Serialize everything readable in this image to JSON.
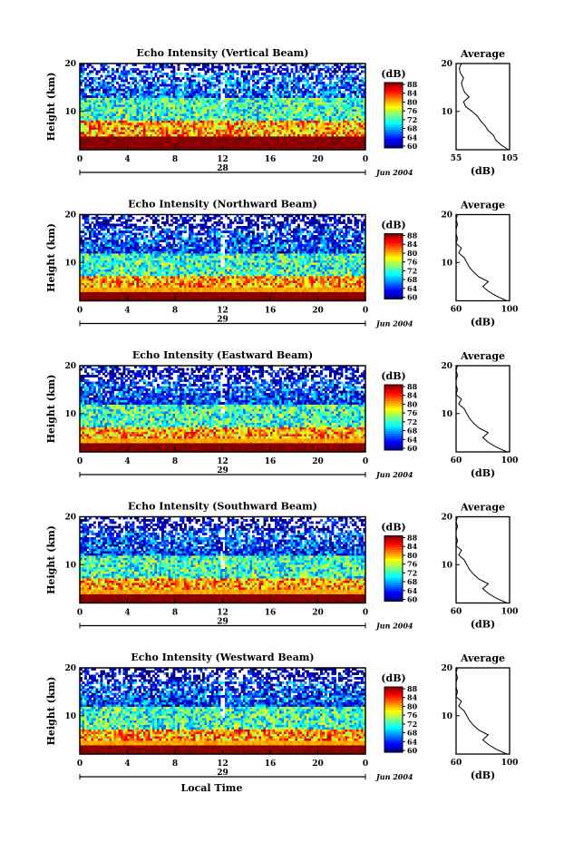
{
  "chart_data": [
    {
      "type": "heatmap",
      "title": "Echo Intensity (Vertical Beam)",
      "ylabel": "Height (km)",
      "ylim": [
        2,
        20
      ],
      "xlim": [
        0,
        24
      ],
      "x_ticks": [
        "0",
        "4",
        "8",
        "12",
        "16",
        "20",
        "0"
      ],
      "y_ticks": [
        "20",
        "10"
      ],
      "day_label": "28",
      "date_label": "Jun 2004",
      "colorbar": {
        "unit": "(dB)",
        "ticks": [
          "88",
          "84",
          "80",
          "76",
          "72",
          "68",
          "64",
          "60"
        ],
        "range": [
          60,
          88
        ]
      },
      "layers": [
        {
          "height_km": [
            2,
            5
          ],
          "intensity_db": 88
        },
        {
          "height_km": [
            5,
            8
          ],
          "intensity_db": 80
        },
        {
          "height_km": [
            8,
            13
          ],
          "intensity_db": 72
        },
        {
          "height_km": [
            13,
            18
          ],
          "intensity_db": 66
        },
        {
          "height_km": [
            18,
            20
          ],
          "intensity_db": 62
        }
      ],
      "average_profile": {
        "title": "Average",
        "xlabel": "(dB)",
        "xlim": [
          55,
          105
        ],
        "x_ticks": [
          "55",
          "105"
        ],
        "y_ticks": [
          "20",
          "10"
        ],
        "height": [
          2,
          3,
          4,
          5,
          6,
          7,
          8,
          9,
          10,
          11,
          12,
          13,
          14,
          15,
          16,
          17,
          18,
          19,
          20
        ],
        "db": [
          104,
          97,
          92,
          90,
          85,
          82,
          78,
          75,
          70,
          64,
          62,
          67,
          63,
          61,
          60,
          62,
          59,
          58,
          60
        ]
      }
    },
    {
      "type": "heatmap",
      "title": "Echo Intensity (Northward Beam)",
      "ylabel": "Height (km)",
      "ylim": [
        2,
        20
      ],
      "xlim": [
        0,
        24
      ],
      "x_ticks": [
        "0",
        "4",
        "8",
        "12",
        "16",
        "20",
        "0"
      ],
      "y_ticks": [
        "20",
        "10"
      ],
      "day_label": "29",
      "date_label": "Jun 2004",
      "colorbar": {
        "unit": "(dB)",
        "ticks": [
          "88",
          "84",
          "80",
          "76",
          "72",
          "68",
          "64",
          "60"
        ],
        "range": [
          60,
          88
        ]
      },
      "layers": [
        {
          "height_km": [
            2,
            4
          ],
          "intensity_db": 88
        },
        {
          "height_km": [
            4,
            7
          ],
          "intensity_db": 80
        },
        {
          "height_km": [
            7,
            12
          ],
          "intensity_db": 72
        },
        {
          "height_km": [
            12,
            17
          ],
          "intensity_db": 65
        },
        {
          "height_km": [
            17,
            20
          ],
          "intensity_db": 61
        }
      ],
      "average_profile": {
        "title": "Average",
        "xlabel": "(dB)",
        "xlim": [
          60,
          100
        ],
        "x_ticks": [
          "60",
          "100"
        ],
        "y_ticks": [
          "20",
          "10"
        ],
        "height": [
          2,
          3,
          4,
          5,
          6,
          7,
          8,
          9,
          10,
          11,
          12,
          13,
          14,
          15,
          16,
          17,
          18,
          19,
          20
        ],
        "db": [
          98,
          90,
          84,
          80,
          84,
          77,
          73,
          70,
          68,
          66,
          62,
          64,
          60,
          61,
          60,
          60,
          61,
          60,
          61
        ]
      }
    },
    {
      "type": "heatmap",
      "title": "Echo Intensity (Eastward Beam)",
      "ylabel": "Height (km)",
      "ylim": [
        2,
        20
      ],
      "xlim": [
        0,
        24
      ],
      "x_ticks": [
        "0",
        "4",
        "8",
        "12",
        "16",
        "20",
        "0"
      ],
      "y_ticks": [
        "20",
        "10"
      ],
      "day_label": "29",
      "date_label": "Jun 2004",
      "colorbar": {
        "unit": "(dB)",
        "ticks": [
          "88",
          "84",
          "80",
          "76",
          "72",
          "68",
          "64",
          "60"
        ],
        "range": [
          60,
          88
        ]
      },
      "layers": [
        {
          "height_km": [
            2,
            4
          ],
          "intensity_db": 88
        },
        {
          "height_km": [
            4,
            7
          ],
          "intensity_db": 80
        },
        {
          "height_km": [
            7,
            12
          ],
          "intensity_db": 72
        },
        {
          "height_km": [
            12,
            17
          ],
          "intensity_db": 65
        },
        {
          "height_km": [
            17,
            20
          ],
          "intensity_db": 61
        }
      ],
      "average_profile": {
        "title": "Average",
        "xlabel": "(dB)",
        "xlim": [
          60,
          100
        ],
        "x_ticks": [
          "60",
          "100"
        ],
        "y_ticks": [
          "20",
          "10"
        ],
        "height": [
          2,
          3,
          4,
          5,
          6,
          7,
          8,
          9,
          10,
          11,
          12,
          13,
          14,
          15,
          16,
          17,
          18,
          19,
          20
        ],
        "db": [
          98,
          90,
          84,
          80,
          84,
          77,
          73,
          70,
          68,
          66,
          62,
          64,
          60,
          61,
          60,
          60,
          61,
          60,
          61
        ]
      }
    },
    {
      "type": "heatmap",
      "title": "Echo Intensity (Southward Beam)",
      "ylabel": "Height (km)",
      "ylim": [
        2,
        20
      ],
      "xlim": [
        0,
        24
      ],
      "x_ticks": [
        "0",
        "4",
        "8",
        "12",
        "16",
        "20",
        "0"
      ],
      "y_ticks": [
        "20",
        "10"
      ],
      "day_label": "29",
      "date_label": "Jun 2004",
      "colorbar": {
        "unit": "(dB)",
        "ticks": [
          "88",
          "84",
          "80",
          "76",
          "72",
          "68",
          "64",
          "60"
        ],
        "range": [
          60,
          88
        ]
      },
      "layers": [
        {
          "height_km": [
            2,
            4
          ],
          "intensity_db": 88
        },
        {
          "height_km": [
            4,
            7
          ],
          "intensity_db": 80
        },
        {
          "height_km": [
            7,
            12
          ],
          "intensity_db": 72
        },
        {
          "height_km": [
            12,
            17
          ],
          "intensity_db": 65
        },
        {
          "height_km": [
            17,
            20
          ],
          "intensity_db": 61
        }
      ],
      "average_profile": {
        "title": "Average",
        "xlabel": "(dB)",
        "xlim": [
          60,
          100
        ],
        "x_ticks": [
          "60",
          "100"
        ],
        "y_ticks": [
          "20",
          "10"
        ],
        "height": [
          2,
          3,
          4,
          5,
          6,
          7,
          8,
          9,
          10,
          11,
          12,
          13,
          14,
          15,
          16,
          17,
          18,
          19,
          20
        ],
        "db": [
          98,
          90,
          84,
          80,
          84,
          77,
          73,
          70,
          68,
          66,
          62,
          64,
          60,
          61,
          60,
          60,
          61,
          60,
          61
        ]
      }
    },
    {
      "type": "heatmap",
      "title": "Echo Intensity (Westward Beam)",
      "ylabel": "Height (km)",
      "ylim": [
        2,
        20
      ],
      "xlim": [
        0,
        24
      ],
      "x_ticks": [
        "0",
        "4",
        "8",
        "12",
        "16",
        "20",
        "0"
      ],
      "y_ticks": [
        "20",
        "10"
      ],
      "day_label": "29",
      "date_label": "Jun 2004",
      "xlabel": "Local Time",
      "colorbar": {
        "unit": "(dB)",
        "ticks": [
          "88",
          "84",
          "80",
          "76",
          "72",
          "68",
          "64",
          "60"
        ],
        "range": [
          60,
          88
        ]
      },
      "layers": [
        {
          "height_km": [
            2,
            4
          ],
          "intensity_db": 88
        },
        {
          "height_km": [
            4,
            7
          ],
          "intensity_db": 80
        },
        {
          "height_km": [
            7,
            12
          ],
          "intensity_db": 72
        },
        {
          "height_km": [
            12,
            17
          ],
          "intensity_db": 65
        },
        {
          "height_km": [
            17,
            20
          ],
          "intensity_db": 61
        }
      ],
      "average_profile": {
        "title": "Average",
        "xlabel": "(dB)",
        "xlim": [
          60,
          100
        ],
        "x_ticks": [
          "60",
          "100"
        ],
        "y_ticks": [
          "20",
          "10"
        ],
        "height": [
          2,
          3,
          4,
          5,
          6,
          7,
          8,
          9,
          10,
          11,
          12,
          13,
          14,
          15,
          16,
          17,
          18,
          19,
          20
        ],
        "db": [
          98,
          90,
          84,
          80,
          84,
          77,
          73,
          70,
          68,
          66,
          62,
          64,
          60,
          61,
          60,
          60,
          61,
          60,
          61
        ]
      }
    }
  ]
}
